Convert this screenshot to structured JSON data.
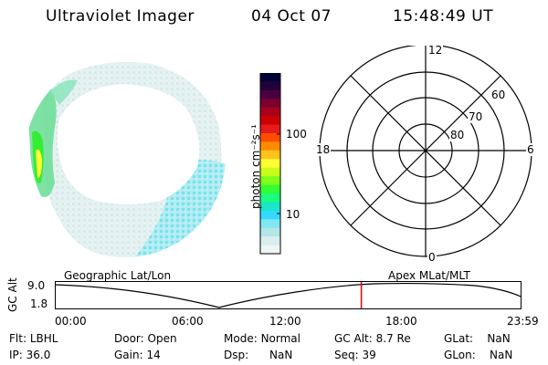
{
  "header": {
    "instrument": "Ultraviolet Imager",
    "date": "04 Oct 07",
    "time": "15:48:49 UT"
  },
  "colorbar": {
    "unit_label": "photon cm⁻²s⁻¹",
    "ticks": [
      "100",
      "10"
    ],
    "colors": [
      "#000033",
      "#22003d",
      "#4a0040",
      "#7a0030",
      "#a8001a",
      "#cc0000",
      "#e61a1a",
      "#ff4d00",
      "#ff8c00",
      "#ffc21a",
      "#ffff33",
      "#c8ff1a",
      "#80ff1a",
      "#33ff33",
      "#1aff80",
      "#1ae6c8",
      "#33d9ff",
      "#80e6f2",
      "#b3e6e6",
      "#d9eeee",
      "#eef5f5"
    ]
  },
  "polar_plot": {
    "mlt_labels": {
      "top": "12",
      "left": "18",
      "right": "6",
      "bottom": "0"
    },
    "lat_labels": [
      "60",
      "70",
      "80"
    ]
  },
  "timeline": {
    "left_label": "Geographic Lat/Lon",
    "right_label": "Apex MLat/MLT",
    "y_axis_label": "GC Alt",
    "y_ticks": [
      "9.0",
      "1.8"
    ],
    "x_ticks": [
      "00:00",
      "06:00",
      "12:00",
      "18:00",
      "23:59"
    ],
    "current_time_fraction": 0.658
  },
  "info": {
    "filter_label": "Flt:",
    "filter_value": "LBHL",
    "door_label": "Door:",
    "door_value": "Open",
    "mode_label": "Mode:",
    "mode_value": "Normal",
    "gcalt_label": "GC Alt:",
    "gcalt_value": "8.7 Re",
    "glat_label": "GLat:",
    "glat_value": "NaN",
    "ip_label": "IP:",
    "ip_value": "36.0",
    "gain_label": "Gain:",
    "gain_value": "14",
    "dsp_label": "Dsp:",
    "dsp_value": "NaN",
    "seq_label": "Seq:",
    "seq_value": "39",
    "glon_label": "GLon:",
    "glon_value": "NaN"
  }
}
